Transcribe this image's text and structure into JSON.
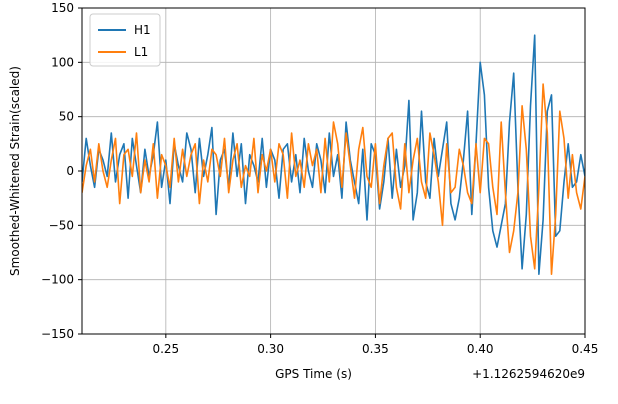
{
  "chart_data": {
    "type": "line",
    "xlabel": "GPS Time (s)",
    "ylabel": "Smoothed-Whitened Strain(scaled)",
    "x_offset_label": "+1.1262594620e9",
    "xlim": [
      0.21,
      0.45
    ],
    "ylim": [
      -150,
      150
    ],
    "xticks": [
      0.25,
      0.3,
      0.35,
      0.4,
      0.45
    ],
    "xtick_labels": [
      "0.25",
      "0.30",
      "0.35",
      "0.40",
      "0.45"
    ],
    "yticks": [
      -150,
      -100,
      -50,
      0,
      50,
      100,
      150
    ],
    "ytick_labels": [
      "−150",
      "−100",
      "−50",
      "0",
      "50",
      "100",
      "150"
    ],
    "grid": true,
    "legend_position": "top-left",
    "series": [
      {
        "name": "H1",
        "color": "#1f77b4",
        "x": [
          0.21,
          0.212,
          0.214,
          0.216,
          0.218,
          0.22,
          0.222,
          0.224,
          0.226,
          0.228,
          0.23,
          0.232,
          0.234,
          0.236,
          0.238,
          0.24,
          0.242,
          0.244,
          0.246,
          0.248,
          0.25,
          0.252,
          0.254,
          0.256,
          0.258,
          0.26,
          0.262,
          0.264,
          0.266,
          0.268,
          0.27,
          0.272,
          0.274,
          0.276,
          0.278,
          0.28,
          0.282,
          0.284,
          0.286,
          0.288,
          0.29,
          0.292,
          0.294,
          0.296,
          0.298,
          0.3,
          0.302,
          0.304,
          0.306,
          0.308,
          0.31,
          0.312,
          0.314,
          0.316,
          0.318,
          0.32,
          0.322,
          0.324,
          0.326,
          0.328,
          0.33,
          0.332,
          0.334,
          0.336,
          0.338,
          0.34,
          0.342,
          0.344,
          0.346,
          0.348,
          0.35,
          0.352,
          0.354,
          0.356,
          0.358,
          0.36,
          0.362,
          0.364,
          0.366,
          0.368,
          0.37,
          0.372,
          0.374,
          0.376,
          0.378,
          0.38,
          0.382,
          0.384,
          0.386,
          0.388,
          0.39,
          0.392,
          0.394,
          0.396,
          0.398,
          0.4,
          0.402,
          0.404,
          0.406,
          0.408,
          0.41,
          0.412,
          0.414,
          0.416,
          0.418,
          0.42,
          0.422,
          0.424,
          0.426,
          0.428,
          0.43,
          0.432,
          0.434,
          0.436,
          0.438,
          0.44,
          0.442,
          0.444,
          0.446,
          0.448,
          0.45
        ],
        "y": [
          -10,
          30,
          5,
          -15,
          20,
          10,
          -5,
          35,
          -10,
          15,
          25,
          -25,
          30,
          5,
          -20,
          20,
          -5,
          15,
          45,
          -15,
          10,
          -30,
          25,
          5,
          -10,
          35,
          20,
          -20,
          30,
          -5,
          15,
          40,
          -40,
          10,
          20,
          -15,
          35,
          -5,
          25,
          -30,
          15,
          5,
          -10,
          30,
          -15,
          20,
          10,
          -25,
          20,
          25,
          -10,
          15,
          -20,
          30,
          0,
          -15,
          25,
          10,
          -20,
          35,
          -5,
          15,
          -25,
          45,
          10,
          -10,
          -30,
          20,
          -45,
          25,
          15,
          -35,
          -10,
          30,
          -25,
          20,
          -15,
          5,
          65,
          -45,
          -20,
          55,
          -10,
          -25,
          30,
          -5,
          20,
          45,
          -30,
          -45,
          -25,
          10,
          55,
          -40,
          25,
          100,
          70,
          -15,
          -55,
          -70,
          -50,
          -30,
          45,
          90,
          -15,
          -90,
          -40,
          60,
          125,
          -95,
          -45,
          55,
          70,
          -60,
          -55,
          -10,
          25,
          -15,
          -10,
          15,
          -5
        ],
        "values_note": ""
      },
      {
        "name": "L1",
        "color": "#ff7f0e",
        "x": [
          0.21,
          0.212,
          0.214,
          0.216,
          0.218,
          0.22,
          0.222,
          0.224,
          0.226,
          0.228,
          0.23,
          0.232,
          0.234,
          0.236,
          0.238,
          0.24,
          0.242,
          0.244,
          0.246,
          0.248,
          0.25,
          0.252,
          0.254,
          0.256,
          0.258,
          0.26,
          0.262,
          0.264,
          0.266,
          0.268,
          0.27,
          0.272,
          0.274,
          0.276,
          0.278,
          0.28,
          0.282,
          0.284,
          0.286,
          0.288,
          0.29,
          0.292,
          0.294,
          0.296,
          0.298,
          0.3,
          0.302,
          0.304,
          0.306,
          0.308,
          0.31,
          0.312,
          0.314,
          0.316,
          0.318,
          0.32,
          0.322,
          0.324,
          0.326,
          0.328,
          0.33,
          0.332,
          0.334,
          0.336,
          0.338,
          0.34,
          0.342,
          0.344,
          0.346,
          0.348,
          0.35,
          0.352,
          0.354,
          0.356,
          0.358,
          0.36,
          0.362,
          0.364,
          0.366,
          0.368,
          0.37,
          0.372,
          0.374,
          0.376,
          0.378,
          0.38,
          0.382,
          0.384,
          0.386,
          0.388,
          0.39,
          0.392,
          0.394,
          0.396,
          0.398,
          0.4,
          0.402,
          0.404,
          0.406,
          0.408,
          0.41,
          0.412,
          0.414,
          0.416,
          0.418,
          0.42,
          0.422,
          0.424,
          0.426,
          0.428,
          0.43,
          0.432,
          0.434,
          0.436,
          0.438,
          0.44,
          0.442,
          0.444,
          0.446,
          0.448,
          0.45
        ],
        "y": [
          -20,
          5,
          20,
          -10,
          25,
          0,
          -15,
          10,
          30,
          -30,
          15,
          20,
          -5,
          35,
          -20,
          10,
          -10,
          25,
          -25,
          15,
          5,
          -15,
          30,
          -10,
          20,
          -5,
          15,
          25,
          -30,
          10,
          -10,
          20,
          15,
          -5,
          30,
          -20,
          10,
          25,
          -15,
          5,
          -5,
          30,
          -20,
          15,
          0,
          20,
          -10,
          25,
          15,
          -25,
          35,
          -5,
          10,
          -15,
          25,
          5,
          20,
          -20,
          30,
          -10,
          45,
          25,
          -15,
          35,
          5,
          -25,
          20,
          40,
          -5,
          -15,
          25,
          -30,
          5,
          30,
          35,
          -15,
          -35,
          25,
          -20,
          10,
          30,
          -10,
          -25,
          35,
          15,
          -10,
          -50,
          25,
          -20,
          -15,
          20,
          5,
          -20,
          -30,
          25,
          -20,
          30,
          25,
          -15,
          -40,
          45,
          -20,
          -75,
          -55,
          -20,
          60,
          20,
          -60,
          -90,
          -15,
          80,
          35,
          -95,
          -40,
          55,
          30,
          -25,
          15,
          -20,
          -35,
          -5
        ],
        "values_note": ""
      }
    ]
  }
}
